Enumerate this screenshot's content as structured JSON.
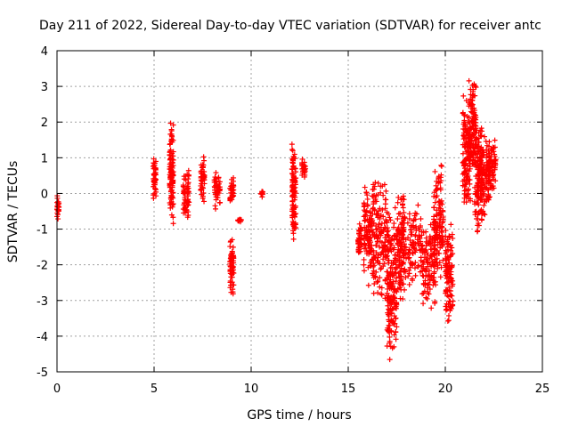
{
  "chart_data": {
    "type": "scatter",
    "title": "Day 211 of 2022, Sidereal Day-to-day VTEC variation (SDTVAR) for receiver antc",
    "xlabel": "GPS time / hours",
    "ylabel": "SDTVAR / TECUs",
    "xlim": [
      0,
      25
    ],
    "ylim": [
      -5,
      4
    ],
    "xticks": [
      0,
      5,
      10,
      15,
      20,
      25
    ],
    "yticks": [
      -5,
      -4,
      -3,
      -2,
      -1,
      0,
      1,
      2,
      3,
      4
    ],
    "grid": true,
    "marker": "+",
    "color": "#ff0000",
    "clusters": [
      {
        "x": [
          0.0,
          0.1
        ],
        "y": [
          -0.75,
          -0.05
        ]
      },
      {
        "x": [
          4.95,
          5.1
        ],
        "y": [
          -0.15,
          1.1
        ]
      },
      {
        "x": [
          5.8,
          6.0
        ],
        "y": [
          -0.85,
          2.05
        ]
      },
      {
        "x": [
          6.5,
          6.8
        ],
        "y": [
          -0.8,
          0.8
        ]
      },
      {
        "x": [
          7.4,
          7.6
        ],
        "y": [
          -0.25,
          1.05
        ]
      },
      {
        "x": [
          8.1,
          8.4
        ],
        "y": [
          -0.5,
          0.7
        ]
      },
      {
        "x": [
          8.9,
          9.1
        ],
        "y": [
          -0.35,
          0.5
        ]
      },
      {
        "x": [
          8.9,
          9.1
        ],
        "y": [
          -2.9,
          -1.2
        ]
      },
      {
        "x": [
          9.3,
          9.5
        ],
        "y": [
          -0.8,
          -0.7
        ]
      },
      {
        "x": [
          10.5,
          10.6
        ],
        "y": [
          -0.1,
          0.1
        ]
      },
      {
        "x": [
          12.1,
          12.3
        ],
        "y": [
          -1.4,
          1.55
        ]
      },
      {
        "x": [
          12.6,
          12.8
        ],
        "y": [
          0.4,
          1.0
        ]
      },
      {
        "x": [
          15.5,
          15.7
        ],
        "y": [
          -1.9,
          -0.8
        ]
      },
      {
        "x": [
          15.8,
          16.3
        ],
        "y": [
          -2.6,
          0.4
        ]
      },
      {
        "x": [
          16.3,
          17.0
        ],
        "y": [
          -3.1,
          0.5
        ]
      },
      {
        "x": [
          17.0,
          17.5
        ],
        "y": [
          -4.8,
          -0.3
        ]
      },
      {
        "x": [
          17.5,
          17.9
        ],
        "y": [
          -3.0,
          0.15
        ]
      },
      {
        "x": [
          17.9,
          18.8
        ],
        "y": [
          -2.7,
          -0.2
        ]
      },
      {
        "x": [
          18.8,
          19.5
        ],
        "y": [
          -3.3,
          -0.7
        ]
      },
      {
        "x": [
          19.4,
          19.9
        ],
        "y": [
          -2.5,
          0.9
        ]
      },
      {
        "x": [
          20.0,
          20.4
        ],
        "y": [
          -3.7,
          -0.8
        ]
      },
      {
        "x": [
          20.9,
          21.3
        ],
        "y": [
          -0.6,
          2.8
        ]
      },
      {
        "x": [
          21.2,
          21.6
        ],
        "y": [
          0.5,
          3.3
        ]
      },
      {
        "x": [
          21.5,
          21.9
        ],
        "y": [
          -1.3,
          2.0
        ]
      },
      {
        "x": [
          21.8,
          22.3
        ],
        "y": [
          -0.8,
          1.9
        ]
      },
      {
        "x": [
          22.2,
          22.6
        ],
        "y": [
          0.0,
          1.6
        ]
      }
    ]
  }
}
